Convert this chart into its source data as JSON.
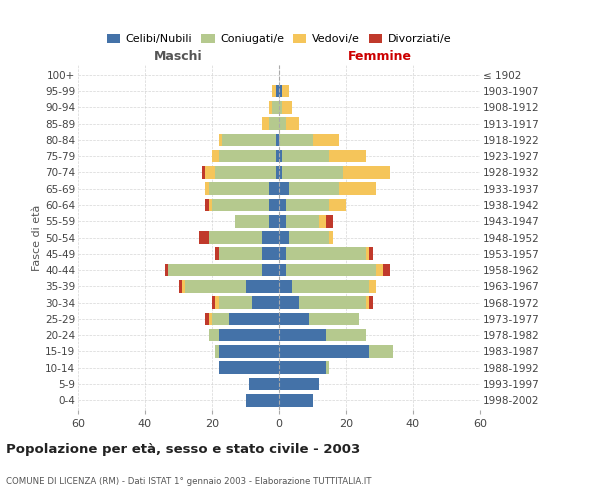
{
  "age_groups": [
    "0-4",
    "5-9",
    "10-14",
    "15-19",
    "20-24",
    "25-29",
    "30-34",
    "35-39",
    "40-44",
    "45-49",
    "50-54",
    "55-59",
    "60-64",
    "65-69",
    "70-74",
    "75-79",
    "80-84",
    "85-89",
    "90-94",
    "95-99",
    "100+"
  ],
  "birth_years": [
    "1998-2002",
    "1993-1997",
    "1988-1992",
    "1983-1987",
    "1978-1982",
    "1973-1977",
    "1968-1972",
    "1963-1967",
    "1958-1962",
    "1953-1957",
    "1948-1952",
    "1943-1947",
    "1938-1942",
    "1933-1937",
    "1928-1932",
    "1923-1927",
    "1918-1922",
    "1913-1917",
    "1908-1912",
    "1903-1907",
    "≤ 1902"
  ],
  "maschi": {
    "celibi": [
      10,
      9,
      18,
      18,
      18,
      15,
      8,
      10,
      5,
      5,
      5,
      3,
      3,
      3,
      1,
      1,
      1,
      0,
      0,
      1,
      0
    ],
    "coniugati": [
      0,
      0,
      0,
      1,
      3,
      5,
      10,
      18,
      28,
      13,
      16,
      10,
      17,
      18,
      18,
      17,
      16,
      3,
      2,
      0,
      0
    ],
    "vedovi": [
      0,
      0,
      0,
      0,
      0,
      1,
      1,
      1,
      0,
      0,
      0,
      0,
      1,
      1,
      3,
      2,
      1,
      2,
      1,
      1,
      0
    ],
    "divorziati": [
      0,
      0,
      0,
      0,
      0,
      1,
      1,
      1,
      1,
      1,
      3,
      0,
      1,
      0,
      1,
      0,
      0,
      0,
      0,
      0,
      0
    ]
  },
  "femmine": {
    "nubili": [
      10,
      12,
      14,
      27,
      14,
      9,
      6,
      4,
      2,
      2,
      3,
      2,
      2,
      3,
      1,
      1,
      0,
      0,
      0,
      1,
      0
    ],
    "coniugate": [
      0,
      0,
      1,
      7,
      12,
      15,
      20,
      23,
      27,
      24,
      12,
      10,
      13,
      15,
      18,
      14,
      10,
      2,
      1,
      0,
      0
    ],
    "vedove": [
      0,
      0,
      0,
      0,
      0,
      0,
      1,
      2,
      2,
      1,
      1,
      2,
      5,
      11,
      14,
      11,
      8,
      4,
      3,
      2,
      0
    ],
    "divorziate": [
      0,
      0,
      0,
      0,
      0,
      0,
      1,
      0,
      2,
      1,
      0,
      2,
      0,
      0,
      0,
      0,
      0,
      0,
      0,
      0,
      0
    ]
  },
  "colors": {
    "celibi": "#4472a8",
    "coniugati": "#b5c98e",
    "vedovi": "#f5c55a",
    "divorziati": "#c0392b"
  },
  "xlim": 60,
  "title": "Popolazione per età, sesso e stato civile - 2003",
  "subtitle": "COMUNE DI LICENZA (RM) - Dati ISTAT 1° gennaio 2003 - Elaborazione TUTTITALIA.IT",
  "ylabel_left": "Fasce di età",
  "xlabel_maschi": "Maschi",
  "xlabel_femmine": "Femmine",
  "legend_labels": [
    "Celibi/Nubili",
    "Coniugati/e",
    "Vedovi/e",
    "Divorziati/e"
  ],
  "background_color": "#ffffff",
  "grid_color": "#cccccc"
}
